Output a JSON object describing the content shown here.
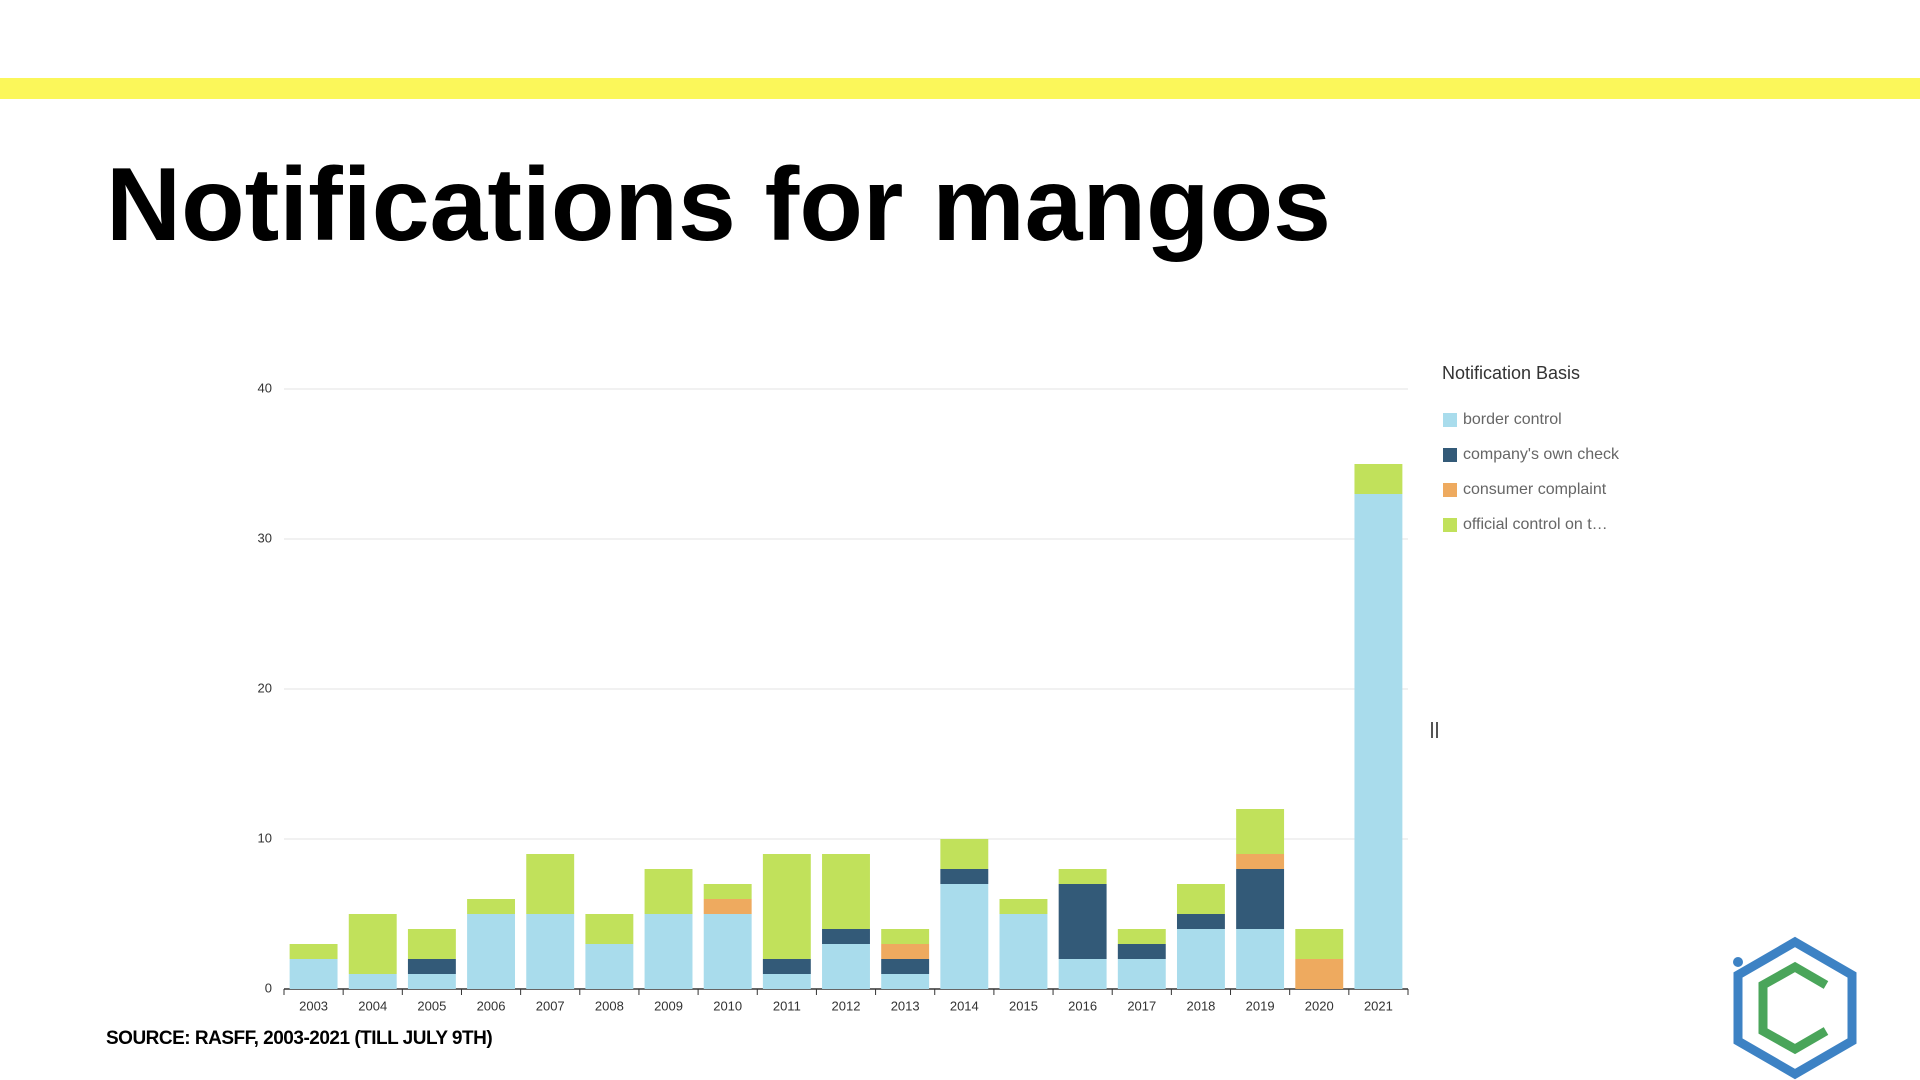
{
  "chart_data": {
    "type": "stacked_bar",
    "title": "Notifications for mangos",
    "source": "SOURCE: RASFF, 2003-2021 (TILL JULY 9TH)",
    "legend_title": "Notification Basis",
    "categories": [
      "2003",
      "2004",
      "2005",
      "2006",
      "2007",
      "2008",
      "2009",
      "2010",
      "2011",
      "2012",
      "2013",
      "2014",
      "2015",
      "2016",
      "2017",
      "2018",
      "2019",
      "2020",
      "2021"
    ],
    "series": [
      {
        "name": "border control",
        "color": "#a9dcec",
        "values": [
          2,
          1,
          1,
          5,
          5,
          3,
          5,
          5,
          1,
          3,
          1,
          7,
          5,
          2,
          2,
          4,
          4,
          0,
          33
        ]
      },
      {
        "name": "company's own check",
        "color": "#335a78",
        "values": [
          0,
          0,
          1,
          0,
          0,
          0,
          0,
          0,
          1,
          1,
          1,
          1,
          0,
          5,
          1,
          1,
          4,
          0,
          0
        ]
      },
      {
        "name": "consumer complaint",
        "color": "#eeaa5f",
        "values": [
          0,
          0,
          0,
          0,
          0,
          0,
          0,
          1,
          0,
          0,
          1,
          0,
          0,
          0,
          0,
          0,
          1,
          2,
          0
        ]
      },
      {
        "name": "official control on t…",
        "color": "#c1e15b",
        "values": [
          1,
          4,
          2,
          1,
          4,
          2,
          3,
          1,
          7,
          5,
          1,
          2,
          1,
          1,
          1,
          2,
          3,
          2,
          2
        ]
      }
    ],
    "ylim": [
      0,
      40
    ],
    "yticks": [
      0,
      10,
      20,
      30,
      40
    ],
    "grid": true,
    "legend": "right"
  }
}
